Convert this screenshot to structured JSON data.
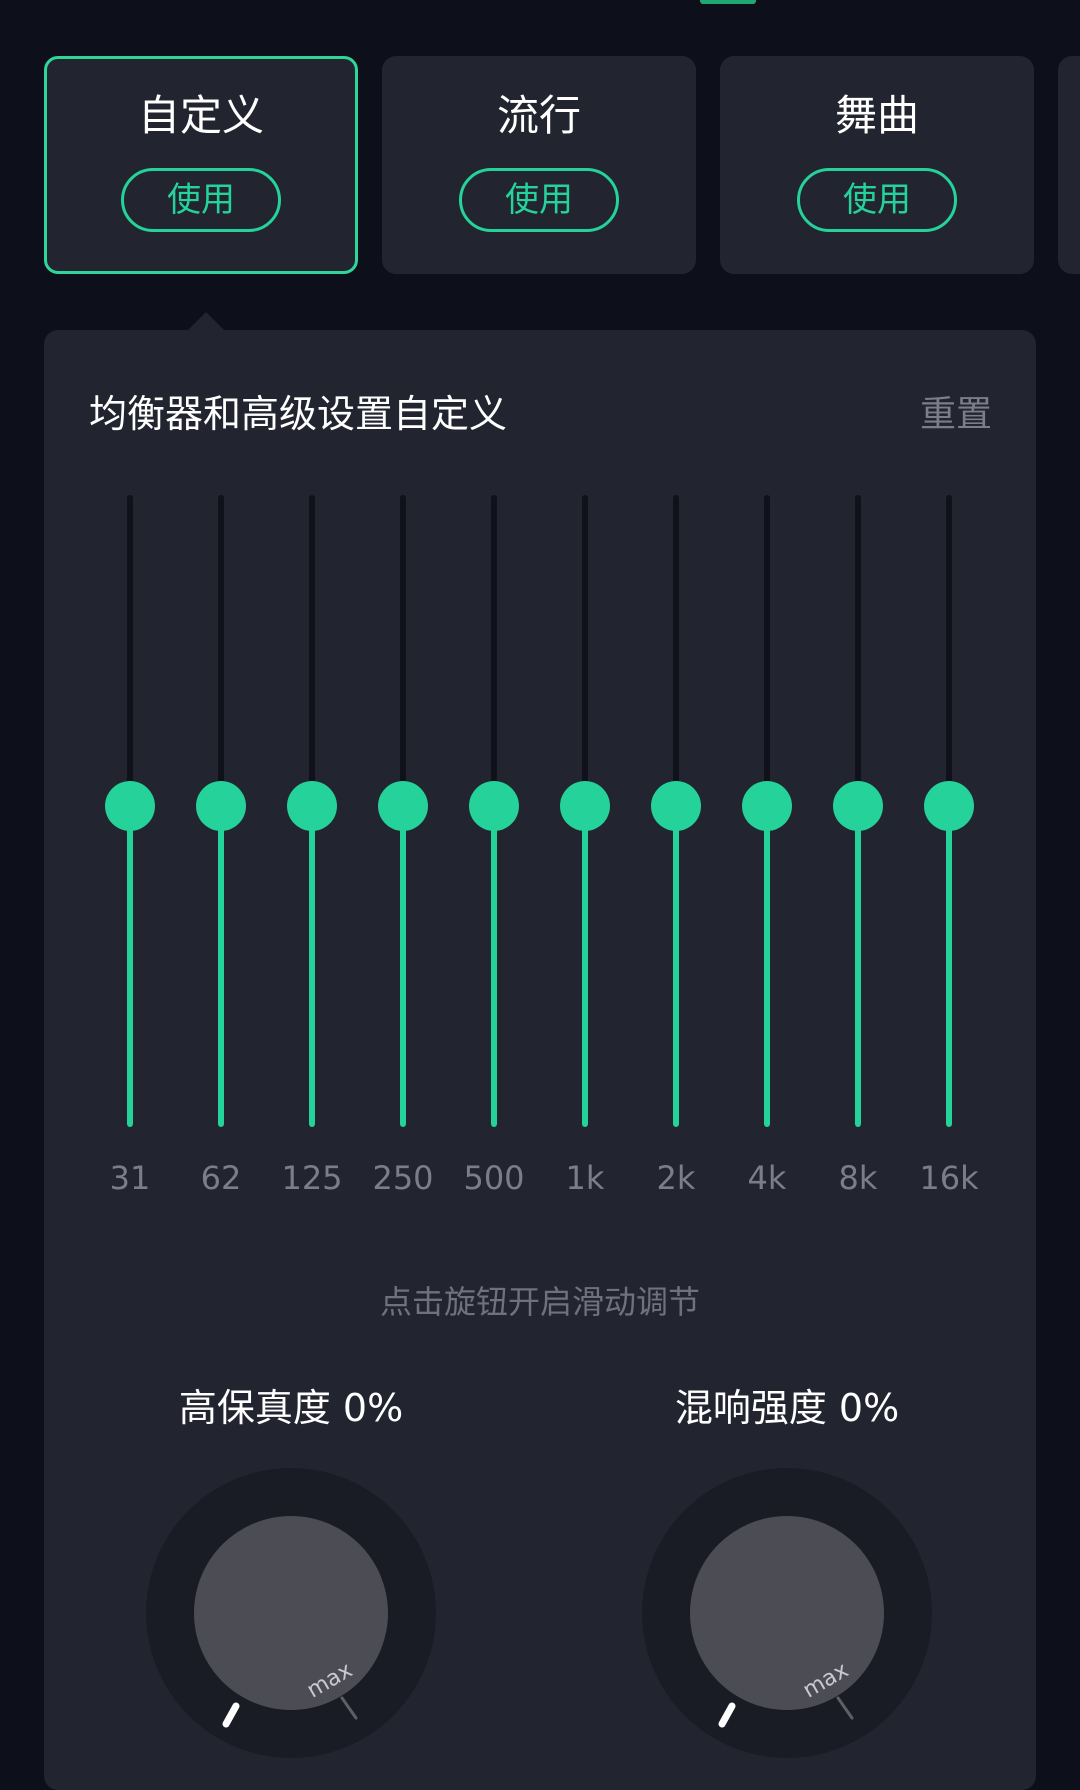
{
  "presets": [
    {
      "title": "自定义",
      "use_label": "使用",
      "selected": true
    },
    {
      "title": "流行",
      "use_label": "使用",
      "selected": false
    },
    {
      "title": "舞曲",
      "use_label": "使用",
      "selected": false
    }
  ],
  "panel": {
    "title": "均衡器和高级设置自定义",
    "reset_label": "重置",
    "hint": "点击旋钮开启滑动调节"
  },
  "eq": {
    "bands": [
      {
        "label": "31",
        "level": 0.5
      },
      {
        "label": "62",
        "level": 0.5
      },
      {
        "label": "125",
        "level": 0.5
      },
      {
        "label": "250",
        "level": 0.5
      },
      {
        "label": "500",
        "level": 0.5
      },
      {
        "label": "1k",
        "level": 0.5
      },
      {
        "label": "2k",
        "level": 0.5
      },
      {
        "label": "4k",
        "level": 0.5
      },
      {
        "label": "8k",
        "level": 0.5
      },
      {
        "label": "16k",
        "level": 0.5
      }
    ]
  },
  "knobs": [
    {
      "title": "高保真度 0%",
      "max_label": "max",
      "value": 0
    },
    {
      "title": "混响强度 0%",
      "max_label": "max",
      "value": 0
    }
  ],
  "colors": {
    "accent": "#24d29a",
    "background": "#0d0f1a",
    "card": "#22242f",
    "muted_text": "#7b7e88"
  }
}
